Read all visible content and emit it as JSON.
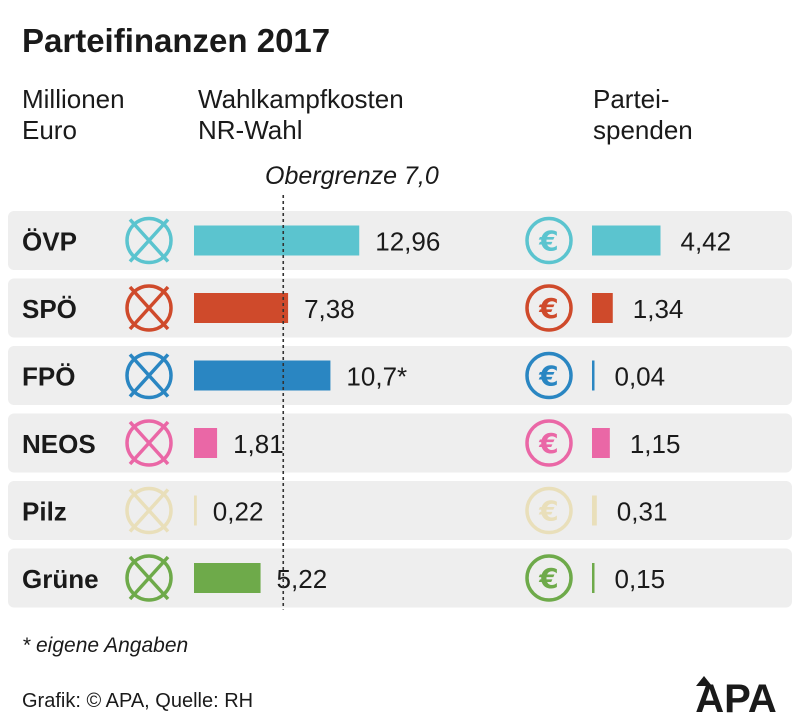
{
  "title": "Parteifinanzen 2017",
  "unit_label": [
    "Millionen",
    "Euro"
  ],
  "col1_label": [
    "Wahlkampfkosten",
    "NR-Wahl"
  ],
  "col2_label": [
    "Partei-",
    "spenden"
  ],
  "limit_label": "Obergrenze 7,0",
  "footnote": "* eigene Angaben",
  "credit": "Grafik: © APA, Quelle: RH",
  "logo_text": "APA",
  "colors": {
    "row_bg": "#eeeeee",
    "limit_line": "#333333",
    "logo": "#1a1a1a"
  },
  "chart_data": {
    "type": "bar",
    "categories": [
      "ÖVP",
      "SPÖ",
      "FPÖ",
      "NEOS",
      "Pilz",
      "Grüne"
    ],
    "category_colors": [
      "#5bc4cf",
      "#cf4a2b",
      "#2a86c2",
      "#ea67a6",
      "#e9dfba",
      "#6eaa4a"
    ],
    "icons": [
      "ballot-cross-icon",
      "euro-coin-icon"
    ],
    "series": [
      {
        "values": [
          12.96,
          7.38,
          10.7,
          1.81,
          0.22,
          5.22
        ],
        "labels": [
          "12,96",
          "7,38",
          "10,7*",
          "1,81",
          "0,22",
          "5,22"
        ]
      },
      {
        "values": [
          4.42,
          1.34,
          0.04,
          1.15,
          0.31,
          0.15
        ],
        "labels": [
          "4,42",
          "1,34",
          "0,04",
          "1,15",
          "0,31",
          "0,15"
        ]
      }
    ],
    "reference_line": {
      "series": 0,
      "value": 7.0
    }
  }
}
